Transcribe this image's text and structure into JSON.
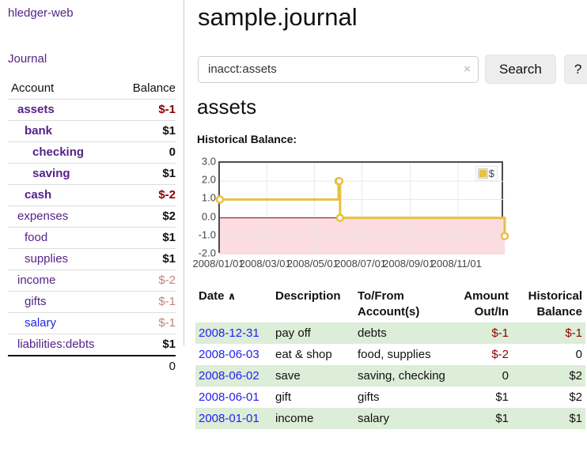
{
  "sidebar": {
    "app_title": "hledger-web",
    "nav": {
      "journal_label": "Journal"
    },
    "accounts_table": {
      "headers": {
        "account": "Account",
        "balance": "Balance"
      },
      "rows": [
        {
          "name": "assets",
          "balance": "$-1",
          "depth": 1,
          "bold": true,
          "negative": "strong"
        },
        {
          "name": "bank",
          "balance": "$1",
          "depth": 2,
          "bold": true,
          "negative": null
        },
        {
          "name": "checking",
          "balance": "0",
          "depth": 3,
          "bold": true,
          "negative": null
        },
        {
          "name": "saving",
          "balance": "$1",
          "depth": 3,
          "bold": true,
          "negative": null
        },
        {
          "name": "cash",
          "balance": "$-2",
          "depth": 2,
          "bold": true,
          "negative": "strong"
        },
        {
          "name": "expenses",
          "balance": "$2",
          "depth": 1,
          "bold": false,
          "negative": null
        },
        {
          "name": "food",
          "balance": "$1",
          "depth": 2,
          "bold": false,
          "negative": null
        },
        {
          "name": "supplies",
          "balance": "$1",
          "depth": 2,
          "bold": false,
          "negative": null
        },
        {
          "name": "income",
          "balance": "$-2",
          "depth": 1,
          "bold": false,
          "negative": "muted"
        },
        {
          "name": "gifts",
          "balance": "$-1",
          "depth": 2,
          "bold": false,
          "negative": "muted"
        },
        {
          "name": "salary",
          "balance": "$-1",
          "depth": 2,
          "bold": false,
          "negative": "muted"
        },
        {
          "name": "liabilities:debts",
          "balance": "$1",
          "depth": 1,
          "bold": false,
          "negative": null
        }
      ],
      "total": "0"
    }
  },
  "main": {
    "page_title": "sample.journal",
    "search": {
      "value": "inacct:assets",
      "clear_icon": "×",
      "button_label": "Search",
      "help_label": "?"
    },
    "account_heading": "assets",
    "chart_heading": "Historical Balance:"
  },
  "chart_data": {
    "type": "line",
    "step": true,
    "title": "Historical Balance",
    "series": [
      {
        "name": "$",
        "color": "#e9c044",
        "points": [
          [
            "2008-01-01",
            1
          ],
          [
            "2008-06-01",
            2
          ],
          [
            "2008-06-02",
            2
          ],
          [
            "2008-06-03",
            0
          ],
          [
            "2008-12-31",
            -1
          ]
        ]
      }
    ],
    "x_start": "2008-01-01",
    "x_end": "2008-12-31",
    "x_ticks": [
      {
        "date": "2008-01-01",
        "label": "2008/01/01"
      },
      {
        "date": "2008-03-01",
        "label": "2008/03/01"
      },
      {
        "date": "2008-05-01",
        "label": "2008/05/01"
      },
      {
        "date": "2008-07-01",
        "label": "2008/07/01"
      },
      {
        "date": "2008-09-01",
        "label": "2008/09/01"
      },
      {
        "date": "2008-11-01",
        "label": "2008/11/01"
      }
    ],
    "y_ticks": [
      {
        "value": 3,
        "label": "3.0"
      },
      {
        "value": 2,
        "label": "2.0"
      },
      {
        "value": 1,
        "label": "1.0"
      },
      {
        "value": 0,
        "label": "0.0"
      },
      {
        "value": -1,
        "label": "-1.0"
      },
      {
        "value": -2,
        "label": "-2.0"
      }
    ],
    "ylim": [
      -2,
      3
    ],
    "grid": true,
    "legend": {
      "position": "top-right",
      "label": "$",
      "swatch_color": "#e9c044"
    },
    "negative_region_color": "#fbdce0",
    "zero_line_color": "#8b0000",
    "gridline_color": "#e8e8e8"
  },
  "transactions_table": {
    "headers": {
      "date": "Date",
      "sort_icon": "∧",
      "description": "Description",
      "accounts": "To/From Account(s)",
      "amount": "Amount Out/In",
      "balance": "Historical Balance"
    },
    "rows": [
      {
        "date": "2008-12-31",
        "description": "pay off",
        "accounts": "debts",
        "amount": "$-1",
        "balance": "$-1"
      },
      {
        "date": "2008-06-03",
        "description": "eat & shop",
        "accounts": "food, supplies",
        "amount": "$-2",
        "balance": "0"
      },
      {
        "date": "2008-06-02",
        "description": "save",
        "accounts": "saving, checking",
        "amount": "0",
        "balance": "$2"
      },
      {
        "date": "2008-06-01",
        "description": "gift",
        "accounts": "gifts",
        "amount": "$1",
        "balance": "$2"
      },
      {
        "date": "2008-01-01",
        "description": "income",
        "accounts": "salary",
        "amount": "$1",
        "balance": "$1"
      }
    ]
  },
  "colors": {
    "link_purple": "#552288",
    "link_blue": "#2222ee",
    "negative_strong": "#8b0000",
    "negative_muted": "#c28484",
    "row_shade_green": "#dcedd8",
    "chart_line_gold": "#e9c044",
    "chart_negative_pink": "#fbdce0",
    "chart_zero_line": "#8b0000"
  }
}
